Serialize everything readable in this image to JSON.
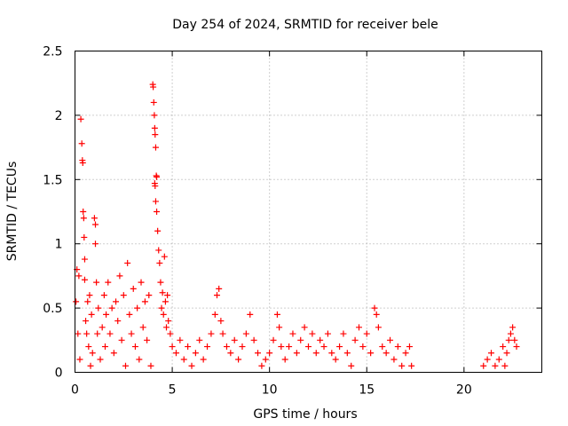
{
  "chart_data": {
    "type": "scatter",
    "title": "Day 254 of 2024, SRMTID for receiver bele",
    "xlabel": "GPS time / hours",
    "ylabel": "SRMTID / TECUs",
    "xlim": [
      0,
      24
    ],
    "ylim": [
      0,
      2.5
    ],
    "xticks": [
      0,
      5,
      10,
      15,
      20
    ],
    "xtick_labels": [
      "0",
      "5",
      "10",
      "15",
      "20"
    ],
    "yticks": [
      0,
      0.5,
      1,
      1.5,
      2,
      2.5
    ],
    "ytick_labels": [
      "0",
      "0.5",
      "1",
      "1.5",
      "2",
      "2.5"
    ],
    "grid": true,
    "marker": "+",
    "color": "#ff0000",
    "series": [
      {
        "name": "SRMTID",
        "points": [
          [
            0.05,
            0.55
          ],
          [
            0.1,
            0.8
          ],
          [
            0.15,
            0.3
          ],
          [
            0.2,
            0.75
          ],
          [
            0.25,
            0.1
          ],
          [
            0.3,
            1.97
          ],
          [
            0.35,
            1.78
          ],
          [
            0.38,
            1.65
          ],
          [
            0.4,
            1.63
          ],
          [
            0.42,
            1.25
          ],
          [
            0.45,
            1.2
          ],
          [
            0.47,
            1.05
          ],
          [
            0.5,
            0.88
          ],
          [
            0.5,
            0.72
          ],
          [
            0.55,
            0.4
          ],
          [
            0.6,
            0.3
          ],
          [
            0.65,
            0.55
          ],
          [
            0.7,
            0.2
          ],
          [
            0.75,
            0.6
          ],
          [
            0.8,
            0.05
          ],
          [
            0.85,
            0.45
          ],
          [
            0.9,
            0.15
          ],
          [
            1.0,
            1.2
          ],
          [
            1.05,
            1.15
          ],
          [
            1.05,
            1.0
          ],
          [
            1.1,
            0.7
          ],
          [
            1.15,
            0.3
          ],
          [
            1.2,
            0.5
          ],
          [
            1.3,
            0.1
          ],
          [
            1.4,
            0.35
          ],
          [
            1.5,
            0.6
          ],
          [
            1.55,
            0.2
          ],
          [
            1.6,
            0.45
          ],
          [
            1.7,
            0.7
          ],
          [
            1.8,
            0.3
          ],
          [
            1.9,
            0.5
          ],
          [
            2.0,
            0.15
          ],
          [
            2.1,
            0.55
          ],
          [
            2.2,
            0.4
          ],
          [
            2.3,
            0.75
          ],
          [
            2.4,
            0.25
          ],
          [
            2.5,
            0.6
          ],
          [
            2.6,
            0.05
          ],
          [
            2.7,
            0.85
          ],
          [
            2.8,
            0.45
          ],
          [
            2.9,
            0.3
          ],
          [
            3.0,
            0.65
          ],
          [
            3.1,
            0.2
          ],
          [
            3.2,
            0.5
          ],
          [
            3.3,
            0.1
          ],
          [
            3.4,
            0.7
          ],
          [
            3.5,
            0.35
          ],
          [
            3.6,
            0.55
          ],
          [
            3.7,
            0.25
          ],
          [
            3.8,
            0.6
          ],
          [
            3.9,
            0.05
          ],
          [
            4.0,
            2.24
          ],
          [
            4.02,
            2.22
          ],
          [
            4.05,
            2.1
          ],
          [
            4.08,
            2.0
          ],
          [
            4.1,
            1.9
          ],
          [
            4.12,
            1.85
          ],
          [
            4.15,
            1.75
          ],
          [
            4.18,
            1.53
          ],
          [
            4.2,
            1.52
          ],
          [
            4.1,
            1.47
          ],
          [
            4.12,
            1.45
          ],
          [
            4.15,
            1.33
          ],
          [
            4.2,
            1.25
          ],
          [
            4.25,
            1.1
          ],
          [
            4.3,
            0.95
          ],
          [
            4.35,
            0.85
          ],
          [
            4.4,
            0.7
          ],
          [
            4.45,
            0.5
          ],
          [
            4.5,
            0.62
          ],
          [
            4.55,
            0.45
          ],
          [
            4.6,
            0.9
          ],
          [
            4.65,
            0.55
          ],
          [
            4.7,
            0.35
          ],
          [
            4.75,
            0.6
          ],
          [
            4.8,
            0.4
          ],
          [
            4.9,
            0.3
          ],
          [
            5.0,
            0.2
          ],
          [
            5.2,
            0.15
          ],
          [
            5.4,
            0.25
          ],
          [
            5.6,
            0.1
          ],
          [
            5.8,
            0.2
          ],
          [
            6.0,
            0.05
          ],
          [
            6.2,
            0.15
          ],
          [
            6.4,
            0.25
          ],
          [
            6.6,
            0.1
          ],
          [
            6.8,
            0.2
          ],
          [
            7.0,
            0.3
          ],
          [
            7.2,
            0.45
          ],
          [
            7.3,
            0.6
          ],
          [
            7.4,
            0.65
          ],
          [
            7.5,
            0.4
          ],
          [
            7.6,
            0.3
          ],
          [
            7.8,
            0.2
          ],
          [
            8.0,
            0.15
          ],
          [
            8.2,
            0.25
          ],
          [
            8.4,
            0.1
          ],
          [
            8.6,
            0.2
          ],
          [
            8.8,
            0.3
          ],
          [
            9.0,
            0.45
          ],
          [
            9.2,
            0.25
          ],
          [
            9.4,
            0.15
          ],
          [
            9.6,
            0.05
          ],
          [
            9.8,
            0.1
          ],
          [
            10.0,
            0.15
          ],
          [
            10.2,
            0.25
          ],
          [
            10.4,
            0.45
          ],
          [
            10.5,
            0.35
          ],
          [
            10.6,
            0.2
          ],
          [
            10.8,
            0.1
          ],
          [
            11.0,
            0.2
          ],
          [
            11.2,
            0.3
          ],
          [
            11.4,
            0.15
          ],
          [
            11.6,
            0.25
          ],
          [
            11.8,
            0.35
          ],
          [
            12.0,
            0.2
          ],
          [
            12.2,
            0.3
          ],
          [
            12.4,
            0.15
          ],
          [
            12.6,
            0.25
          ],
          [
            12.8,
            0.2
          ],
          [
            13.0,
            0.3
          ],
          [
            13.2,
            0.15
          ],
          [
            13.4,
            0.1
          ],
          [
            13.6,
            0.2
          ],
          [
            13.8,
            0.3
          ],
          [
            14.0,
            0.15
          ],
          [
            14.2,
            0.05
          ],
          [
            14.4,
            0.25
          ],
          [
            14.6,
            0.35
          ],
          [
            14.8,
            0.2
          ],
          [
            15.0,
            0.3
          ],
          [
            15.2,
            0.15
          ],
          [
            15.4,
            0.5
          ],
          [
            15.5,
            0.45
          ],
          [
            15.6,
            0.35
          ],
          [
            15.8,
            0.2
          ],
          [
            16.0,
            0.15
          ],
          [
            16.2,
            0.25
          ],
          [
            16.4,
            0.1
          ],
          [
            16.6,
            0.2
          ],
          [
            16.8,
            0.05
          ],
          [
            17.0,
            0.15
          ],
          [
            17.2,
            0.2
          ],
          [
            17.3,
            0.05
          ],
          [
            21.0,
            0.05
          ],
          [
            21.2,
            0.1
          ],
          [
            21.4,
            0.15
          ],
          [
            21.6,
            0.05
          ],
          [
            21.8,
            0.1
          ],
          [
            22.0,
            0.2
          ],
          [
            22.1,
            0.05
          ],
          [
            22.2,
            0.15
          ],
          [
            22.3,
            0.25
          ],
          [
            22.4,
            0.3
          ],
          [
            22.5,
            0.35
          ],
          [
            22.6,
            0.25
          ],
          [
            22.7,
            0.2
          ]
        ]
      }
    ]
  }
}
